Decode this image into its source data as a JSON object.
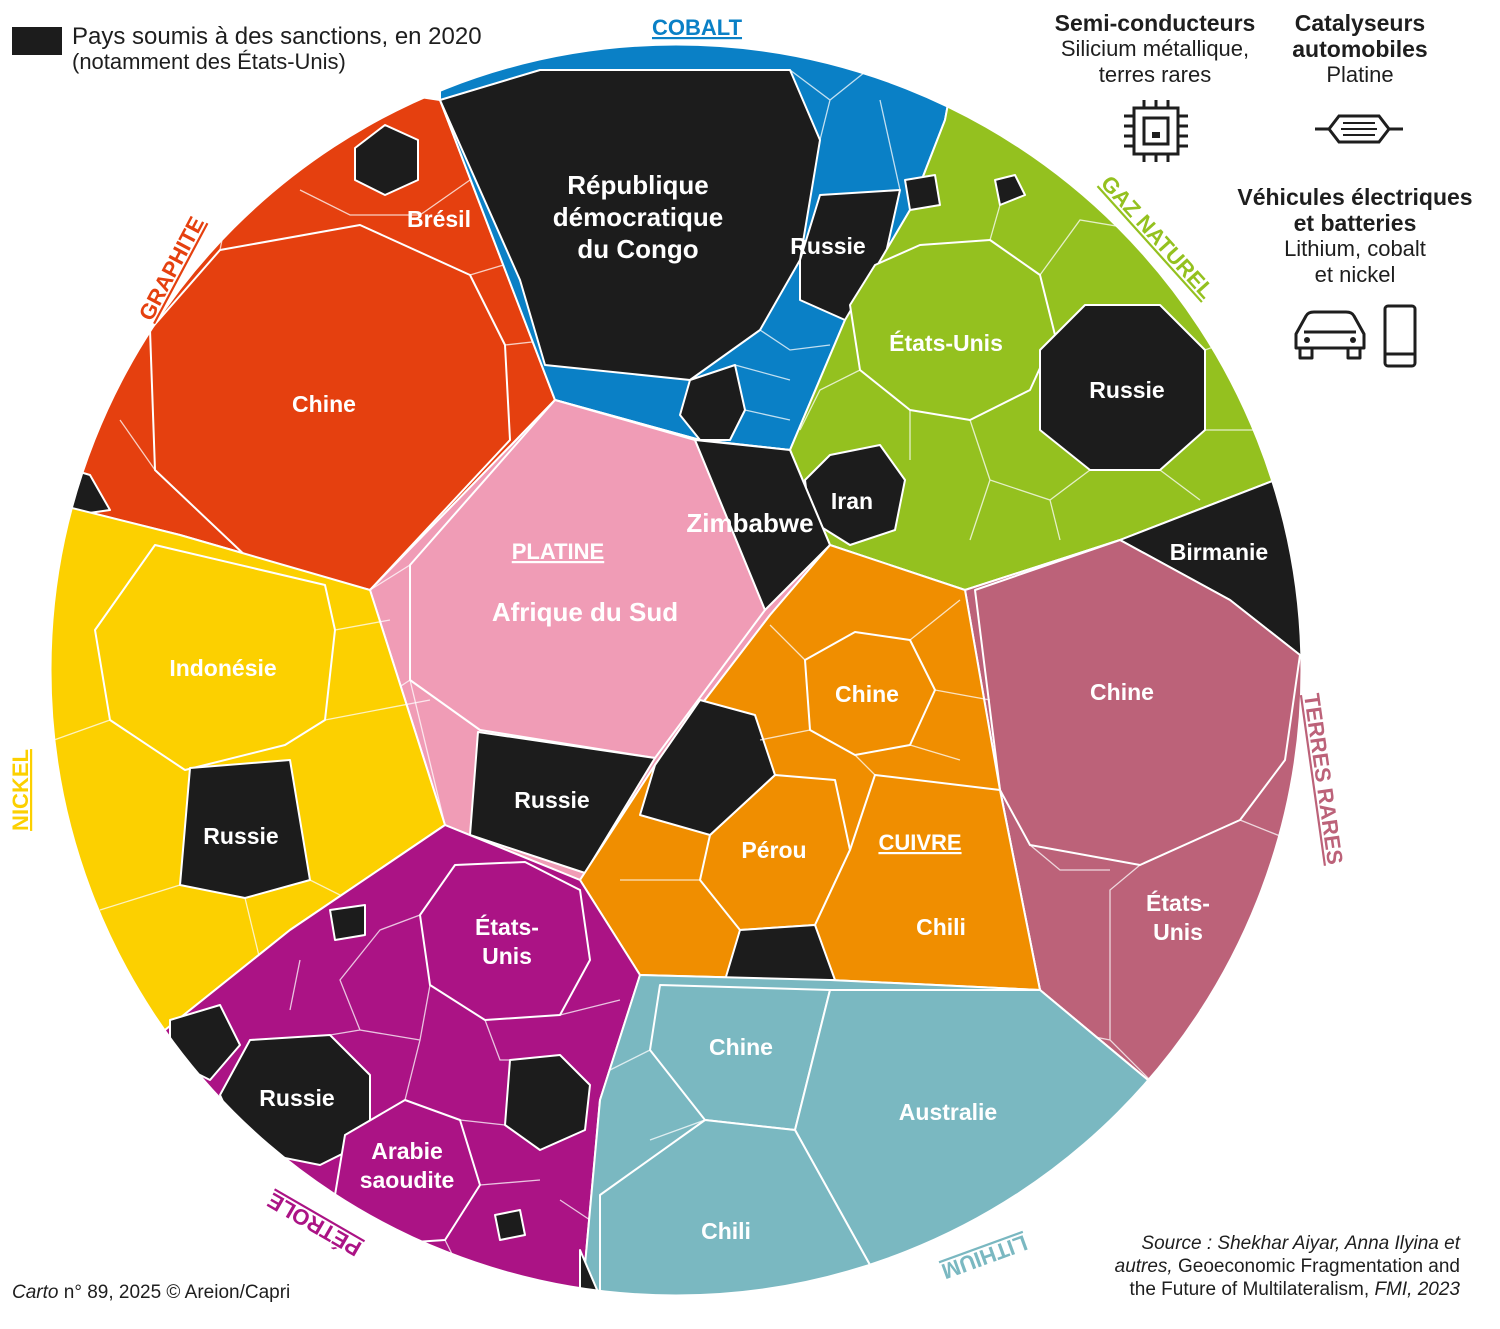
{
  "legend": {
    "line1": "Pays soumis à des sanctions, en 2020",
    "line2": "(notamment des États-Unis)",
    "sanction_color": "#1c1c1c"
  },
  "usages": [
    {
      "title": "Semi-conducteurs",
      "materials": "Silicium métallique,",
      "materials2": "terres rares",
      "icon": "chip-icon"
    },
    {
      "title": "Catalyseurs",
      "title2": "automobiles",
      "materials": "Platine",
      "icon": "catalytic-converter-icon"
    },
    {
      "title": "Véhicules électriques",
      "title2": "et batteries",
      "materials": "Lithium, cobalt",
      "materials2": "et nickel",
      "icon": "car-and-phone-icon"
    }
  ],
  "resources": {
    "cobalt": {
      "name": "COBALT",
      "color": "#0a80c6",
      "countries": {
        "main": [
          "République",
          "démocratique",
          "du Congo"
        ],
        "russia": "Russie"
      }
    },
    "graphite": {
      "name": "GRAPHITE",
      "color": "#e5400f",
      "countries": {
        "china": "Chine",
        "brazil": "Brésil"
      }
    },
    "gaz_naturel": {
      "name": "GAZ NATUREL",
      "color": "#94c11f",
      "countries": {
        "usa": "États-Unis",
        "russia": "Russie",
        "iran": "Iran"
      }
    },
    "platine": {
      "name": "PLATINE",
      "color": "#f09cb6",
      "countries": {
        "south_africa": "Afrique du Sud",
        "zimbabwe": "Zimbabwe",
        "russia": "Russie"
      }
    },
    "nickel": {
      "name": "NICKEL",
      "color": "#fcd000",
      "countries": {
        "indonesia": "Indonésie",
        "russia": "Russie"
      }
    },
    "cuivre": {
      "name": "CUIVRE",
      "color": "#f08e00",
      "countries": {
        "china": "Chine",
        "peru": "Pérou",
        "chile": "Chili"
      }
    },
    "terres_rares": {
      "name": "TERRES RARES",
      "color": "#bc6279",
      "countries": {
        "myanmar": "Birmanie",
        "china": "Chine",
        "usa": [
          "États-",
          "Unis"
        ]
      }
    },
    "petrole": {
      "name": "PÉTROLE",
      "color": "#ab1385",
      "countries": {
        "usa": [
          "États-",
          "Unis"
        ],
        "russia": "Russie",
        "saudi": [
          "Arabie",
          "saoudite"
        ]
      }
    },
    "lithium": {
      "name": "LITHIUM",
      "color": "#7ab8c1",
      "countries": {
        "china": "Chine",
        "australia": "Australie",
        "chile": "Chili"
      }
    }
  },
  "source": {
    "line1": "Source : Shekhar Aiyar, Anna Ilyina et",
    "line2_italic": "autres,",
    "line2_upright": " Geoeconomic Fragmentation and",
    "line3_upright": "the Future of Multilateralism,",
    "line3_italic": " FMI, 2023"
  },
  "credit": {
    "italic": "Carto",
    "rest": " n° 89, 2025 © Areion/Capri"
  }
}
